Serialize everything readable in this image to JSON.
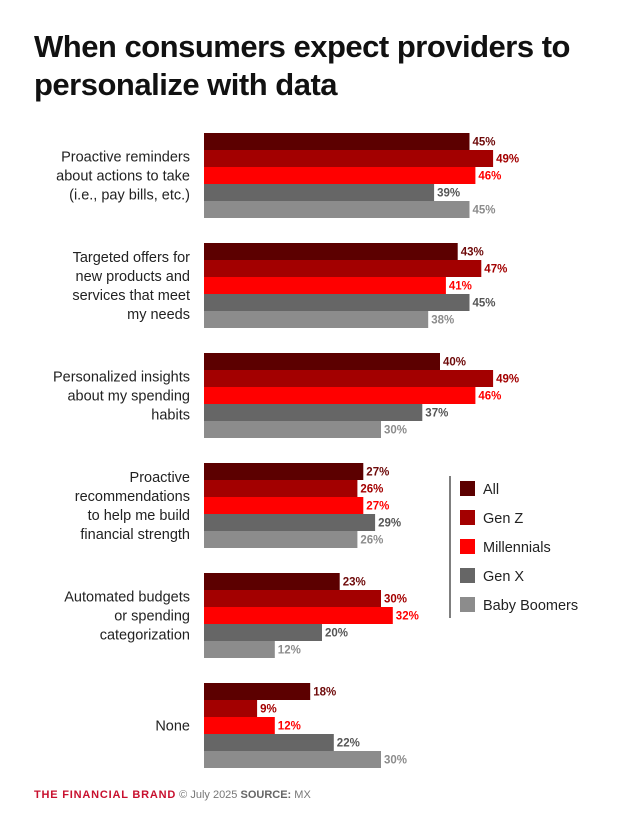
{
  "title": "When consumers expect providers to personalize with data",
  "chart_data": {
    "type": "bar",
    "orientation": "horizontal",
    "title": "When consumers expect providers to personalize with data",
    "categories": [
      [
        "Proactive reminders",
        "about actions to take",
        "(i.e., pay bills, etc.)"
      ],
      [
        "Targeted offers for",
        "new products and",
        "services that meet",
        "my needs"
      ],
      [
        "Personalized insights",
        "about my spending",
        "habits"
      ],
      [
        "Proactive",
        "recommendations",
        "to help me build",
        "financial strength"
      ],
      [
        "Automated budgets",
        "or spending",
        "categorization"
      ],
      [
        "None"
      ]
    ],
    "series": [
      {
        "name": "All",
        "color": "#5c0000",
        "label_color": "#6e0a0a",
        "values": [
          45,
          43,
          40,
          27,
          23,
          18
        ]
      },
      {
        "name": "Gen Z",
        "color": "#a30000",
        "label_color": "#a30000",
        "values": [
          49,
          47,
          49,
          26,
          30,
          9
        ]
      },
      {
        "name": "Millennials",
        "color": "#ff0000",
        "label_color": "#ff0000",
        "values": [
          46,
          41,
          46,
          27,
          32,
          12
        ]
      },
      {
        "name": "Gen X",
        "color": "#666666",
        "label_color": "#555555",
        "values": [
          39,
          45,
          37,
          29,
          20,
          22
        ]
      },
      {
        "name": "Baby Boomers",
        "color": "#8c8c8c",
        "label_color": "#8c8c8c",
        "values": [
          45,
          38,
          30,
          26,
          12,
          30
        ]
      }
    ],
    "value_suffix": "%",
    "legend_position": "right",
    "grid": false
  },
  "footer": {
    "brand": "THE FINANCIAL BRAND",
    "date": "© July 2025",
    "source_label": "SOURCE:",
    "source": "MX"
  }
}
